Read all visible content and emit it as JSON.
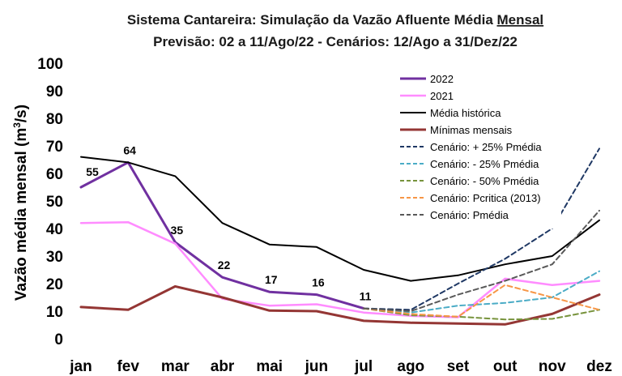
{
  "chart_data": {
    "type": "line",
    "title_line1_pre": "Sistema Cantareira: Simulação da Vazão Afluente Média ",
    "title_line1_underlined": "Mensal",
    "title_line2": "Previsão: 02 a 11/Ago/22 - Cenários: 12/Ago a 31/Dez/22",
    "ylabel_pre": "Vazão média mensal (m",
    "ylabel_sup": "3",
    "ylabel_post": "/s)",
    "ylim": [
      0,
      100
    ],
    "yticks": [
      0,
      10,
      20,
      30,
      40,
      50,
      60,
      70,
      80,
      90,
      100
    ],
    "categories": [
      "jan",
      "fev",
      "mar",
      "abr",
      "mai",
      "jun",
      "jul",
      "ago",
      "set",
      "out",
      "nov",
      "dez"
    ],
    "legend_position": "upper-right",
    "series": [
      {
        "name": "2022",
        "color": "#7030A0",
        "dash": "solid",
        "width": 3,
        "values": [
          55,
          64,
          35,
          22.3,
          17,
          16,
          11,
          null,
          null,
          null,
          null,
          null
        ],
        "data_labels": [
          "55",
          "64",
          "35",
          "22",
          "17",
          "16",
          "11",
          null,
          null,
          null,
          null,
          null
        ]
      },
      {
        "name": "2021",
        "color": "#FF8CFF",
        "dash": "solid",
        "width": 2.5,
        "values": [
          42,
          42.3,
          34.5,
          14.5,
          12,
          12.5,
          9.5,
          8.3,
          7.8,
          21.8,
          19.5,
          21
        ]
      },
      {
        "name": "Média histórica",
        "color": "#000000",
        "dash": "solid",
        "width": 2,
        "values": [
          66,
          64,
          59,
          42,
          34.2,
          33.3,
          25,
          21,
          23,
          27,
          30,
          43
        ]
      },
      {
        "name": "Mínimas mensais",
        "color": "#943634",
        "dash": "solid",
        "width": 3,
        "values": [
          11.5,
          10.5,
          19,
          15,
          10.2,
          10,
          6.5,
          5.8,
          5.5,
          5.2,
          9,
          16
        ]
      },
      {
        "name": "Cenário: + 25% Pmédia",
        "color": "#1F3864",
        "dash": "dashed",
        "width": 2,
        "values": [
          null,
          null,
          null,
          null,
          null,
          null,
          11,
          10.5,
          20,
          29,
          40,
          69
        ]
      },
      {
        "name": "Cenário: - 25% Pmédia",
        "color": "#4BACC6",
        "dash": "dashed",
        "width": 2,
        "values": [
          null,
          null,
          null,
          null,
          null,
          null,
          11,
          9.5,
          12,
          13,
          15,
          24.5
        ]
      },
      {
        "name": "Cenário: - 50% Pmédia",
        "color": "#77933C",
        "dash": "dashed",
        "width": 2,
        "values": [
          null,
          null,
          null,
          null,
          null,
          null,
          11,
          8.5,
          8,
          7,
          7.2,
          10.5
        ]
      },
      {
        "name": "Cenário: Pcritica (2013)",
        "color": "#F79646",
        "dash": "dashed",
        "width": 2,
        "values": [
          null,
          null,
          null,
          null,
          null,
          null,
          11,
          9,
          8,
          19.5,
          15,
          10.5
        ]
      },
      {
        "name": "Cenário: Pmédia",
        "color": "#595959",
        "dash": "dashed",
        "width": 2,
        "values": [
          null,
          null,
          null,
          null,
          null,
          null,
          11,
          10,
          16,
          21,
          27,
          46.5
        ]
      }
    ]
  }
}
